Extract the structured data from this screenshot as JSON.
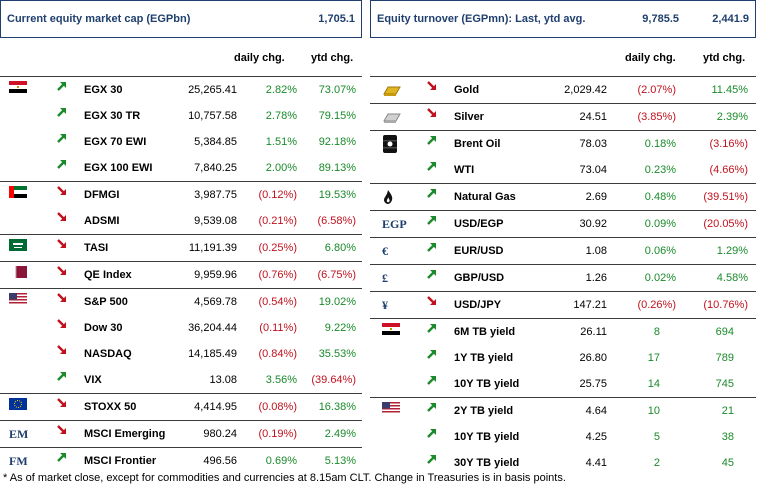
{
  "left": {
    "title": "Current equity market cap (EGPbn)",
    "title_value": "1,705.1",
    "col_daily": "daily chg.",
    "col_ytd": "ytd chg.",
    "groups": [
      {
        "flag": "egypt",
        "rows": [
          {
            "name": "EGX 30",
            "value": "25,265.41",
            "daily": "2.82%",
            "ytd": "73.07%",
            "dir": "up"
          },
          {
            "name": "EGX 30 TR",
            "value": "10,757.58",
            "daily": "2.78%",
            "ytd": "79.15%",
            "dir": "up"
          },
          {
            "name": "EGX 70 EWI",
            "value": "5,384.85",
            "daily": "1.51%",
            "ytd": "92.18%",
            "dir": "up"
          },
          {
            "name": "EGX 100 EWI",
            "value": "7,840.25",
            "daily": "2.00%",
            "ytd": "89.13%",
            "dir": "up"
          }
        ]
      },
      {
        "flag": "uae",
        "rows": [
          {
            "name": "DFMGI",
            "value": "3,987.75",
            "daily": "(0.12%)",
            "ytd": "19.53%",
            "dir": "down"
          },
          {
            "name": "ADSMI",
            "value": "9,539.08",
            "daily": "(0.21%)",
            "ytd": "(6.58%)",
            "dir": "down"
          }
        ]
      },
      {
        "flag": "saudi",
        "rows": [
          {
            "name": "TASI",
            "value": "11,191.39",
            "daily": "(0.25%)",
            "ytd": "6.80%",
            "dir": "down"
          }
        ]
      },
      {
        "flag": "qatar",
        "rows": [
          {
            "name": "QE Index",
            "value": "9,959.96",
            "daily": "(0.76%)",
            "ytd": "(6.75%)",
            "dir": "down"
          }
        ]
      },
      {
        "flag": "usa",
        "rows": [
          {
            "name": "S&P 500",
            "value": "4,569.78",
            "daily": "(0.54%)",
            "ytd": "19.02%",
            "dir": "down"
          },
          {
            "name": "Dow 30",
            "value": "36,204.44",
            "daily": "(0.11%)",
            "ytd": "9.22%",
            "dir": "down"
          },
          {
            "name": "NASDAQ",
            "value": "14,185.49",
            "daily": "(0.84%)",
            "ytd": "35.53%",
            "dir": "down"
          },
          {
            "name": "VIX",
            "value": "13.08",
            "daily": "3.56%",
            "ytd": "(39.64%)",
            "dir": "up"
          }
        ]
      },
      {
        "flag": "eu",
        "rows": [
          {
            "name": "STOXX 50",
            "value": "4,414.95",
            "daily": "(0.08%)",
            "ytd": "16.38%",
            "dir": "down"
          }
        ]
      },
      {
        "flag": "",
        "sym": "EM",
        "rows": [
          {
            "name": "MSCI Emerging",
            "value": "980.24",
            "daily": "(0.19%)",
            "ytd": "2.49%",
            "dir": "down"
          }
        ]
      },
      {
        "flag": "",
        "sym": "FM",
        "rows": [
          {
            "name": "MSCI Frontier",
            "value": "496.56",
            "daily": "0.69%",
            "ytd": "5.13%",
            "dir": "up"
          }
        ]
      }
    ]
  },
  "right": {
    "title": "Equity turnover (EGPmn): Last, ytd avg.",
    "title_value1": "9,785.5",
    "title_value2": "2,441.9",
    "col_daily": "daily chg.",
    "col_ytd": "ytd chg.",
    "groups": [
      {
        "icon": "gold",
        "rows": [
          {
            "name": "Gold",
            "value": "2,029.42",
            "daily": "(2.07%)",
            "ytd": "11.45%",
            "dir": "down"
          }
        ]
      },
      {
        "icon": "silver",
        "rows": [
          {
            "name": "Silver",
            "value": "24.51",
            "daily": "(3.85%)",
            "ytd": "2.39%",
            "dir": "down"
          }
        ]
      },
      {
        "icon": "oil",
        "rows": [
          {
            "name": "Brent Oil",
            "value": "78.03",
            "daily": "0.18%",
            "ytd": "(3.16%)",
            "dir": "up"
          },
          {
            "name": "WTI",
            "value": "73.04",
            "daily": "0.23%",
            "ytd": "(4.66%)",
            "dir": "up"
          }
        ]
      },
      {
        "icon": "gas",
        "rows": [
          {
            "name": "Natural Gas",
            "value": "2.69",
            "daily": "0.48%",
            "ytd": "(39.51%)",
            "dir": "up"
          }
        ]
      },
      {
        "sym": "EGP",
        "rows": [
          {
            "name": "USD/EGP",
            "value": "30.92",
            "daily": "0.09%",
            "ytd": "(20.05%)",
            "dir": "up"
          }
        ]
      },
      {
        "sym": "€",
        "rows": [
          {
            "name": "EUR/USD",
            "value": "1.08",
            "daily": "0.06%",
            "ytd": "1.29%",
            "dir": "up"
          }
        ]
      },
      {
        "sym": "£",
        "rows": [
          {
            "name": "GBP/USD",
            "value": "1.26",
            "daily": "0.02%",
            "ytd": "4.58%",
            "dir": "up"
          }
        ]
      },
      {
        "sym": "¥",
        "rows": [
          {
            "name": "USD/JPY",
            "value": "147.21",
            "daily": "(0.26%)",
            "ytd": "(10.76%)",
            "dir": "down"
          }
        ]
      },
      {
        "icon": "egypt",
        "rows": [
          {
            "name": "6M TB yield",
            "value": "26.11",
            "daily": "8",
            "ytd": "694",
            "dir": "up"
          },
          {
            "name": "1Y TB yield",
            "value": "26.80",
            "daily": "17",
            "ytd": "789",
            "dir": "up"
          },
          {
            "name": "10Y TB yield",
            "value": "25.75",
            "daily": "14",
            "ytd": "745",
            "dir": "up"
          }
        ]
      },
      {
        "icon": "usa",
        "rows": [
          {
            "name": "2Y TB yield",
            "value": "4.64",
            "daily": "10",
            "ytd": "21",
            "dir": "up"
          },
          {
            "name": "10Y TB yield",
            "value": "4.25",
            "daily": "5",
            "ytd": "38",
            "dir": "up"
          },
          {
            "name": "30Y TB yield",
            "value": "4.41",
            "daily": "2",
            "ytd": "45",
            "dir": "up"
          }
        ]
      }
    ]
  },
  "footnote": "* As of market close, except for commodities and currencies at 8.15am CLT. Change in Treasuries is in basis points.",
  "colors": {
    "positive": "#1a8a2a",
    "negative": "#c0121e",
    "header": "#1f3f6e"
  }
}
